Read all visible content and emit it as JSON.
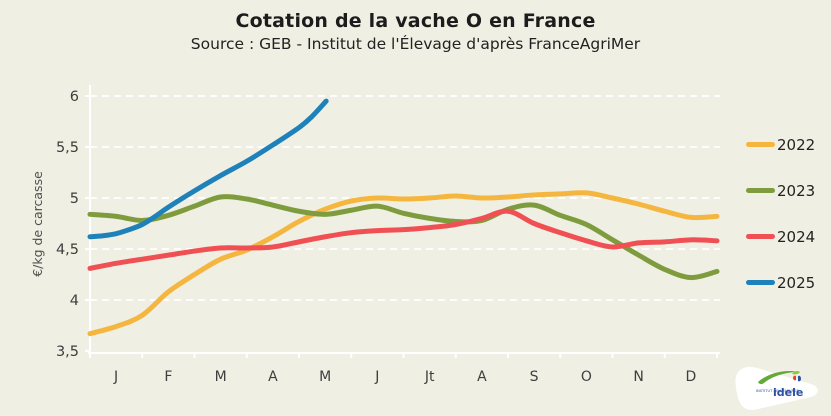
{
  "page": {
    "background": "#F0EFE3",
    "grid_color": "#FFFFFF",
    "text_color": "#1c1c1c",
    "tick_text_color": "#3e3e3e"
  },
  "chart_data": {
    "type": "line",
    "title": "Cotation de la vache O en France",
    "subtitle": "Source : GEB - Institut de l'Élevage d'après FranceAgriMer",
    "ylabel": "€/kg de carcasse",
    "ylim": [
      3.5,
      6.0
    ],
    "yticks": [
      {
        "value": 6,
        "label": "6"
      },
      {
        "value": 5.5,
        "label": "5,5"
      },
      {
        "value": 5,
        "label": "5"
      },
      {
        "value": 4.5,
        "label": "4,5"
      },
      {
        "value": 4,
        "label": "4"
      },
      {
        "value": 3.5,
        "label": "3,5"
      }
    ],
    "xtick_month_labels": [
      "J",
      "F",
      "M",
      "A",
      "M",
      "J",
      "Jt",
      "A",
      "S",
      "O",
      "N",
      "D"
    ],
    "x_unit": "month of year (weekly price series)",
    "grid": "horizontal dashed white",
    "legend_position": "right",
    "series": [
      {
        "name": "2022",
        "color": "#F5B63F",
        "x": [
          0,
          0.5,
          1,
          1.5,
          2,
          2.5,
          3,
          3.5,
          4,
          4.5,
          5,
          5.5,
          6,
          6.5,
          7,
          7.5,
          8,
          8.5,
          9,
          9.5,
          10,
          10.5,
          11,
          11.5,
          12
        ],
        "y": [
          3.67,
          3.74,
          3.85,
          4.08,
          4.25,
          4.4,
          4.49,
          4.62,
          4.77,
          4.89,
          4.97,
          5.0,
          4.99,
          5.0,
          5.02,
          5.0,
          5.01,
          5.03,
          5.04,
          5.05,
          5.0,
          4.94,
          4.87,
          4.81,
          4.82
        ]
      },
      {
        "name": "2023",
        "color": "#7E9C3D",
        "x": [
          0,
          0.5,
          1,
          1.5,
          2,
          2.5,
          3,
          3.5,
          4,
          4.5,
          5,
          5.5,
          6,
          6.5,
          7,
          7.5,
          8,
          8.5,
          9,
          9.5,
          10,
          10.5,
          11,
          11.5,
          12
        ],
        "y": [
          4.84,
          4.82,
          4.78,
          4.83,
          4.92,
          5.01,
          4.99,
          4.93,
          4.87,
          4.84,
          4.88,
          4.92,
          4.85,
          4.8,
          4.77,
          4.78,
          4.89,
          4.93,
          4.83,
          4.74,
          4.59,
          4.44,
          4.3,
          4.22,
          4.28
        ]
      },
      {
        "name": "2024",
        "color": "#F05054",
        "x": [
          0,
          0.5,
          1,
          1.5,
          2,
          2.5,
          3,
          3.5,
          4,
          4.5,
          5,
          5.5,
          6,
          6.5,
          7,
          7.5,
          8,
          8.5,
          9,
          9.5,
          10,
          10.5,
          11,
          11.5,
          12
        ],
        "y": [
          4.31,
          4.36,
          4.4,
          4.44,
          4.48,
          4.51,
          4.51,
          4.52,
          4.57,
          4.62,
          4.66,
          4.68,
          4.69,
          4.71,
          4.74,
          4.8,
          4.87,
          4.75,
          4.66,
          4.58,
          4.52,
          4.56,
          4.57,
          4.59,
          4.58
        ]
      },
      {
        "name": "2025",
        "color": "#1E81B9",
        "x": [
          0,
          0.25,
          0.5,
          0.75,
          1,
          1.25,
          1.5,
          2,
          2.5,
          3,
          3.5,
          4,
          4.25,
          4.52
        ],
        "y": [
          4.62,
          4.63,
          4.65,
          4.69,
          4.74,
          4.82,
          4.91,
          5.07,
          5.22,
          5.36,
          5.52,
          5.69,
          5.8,
          5.95
        ]
      }
    ]
  },
  "logo": {
    "small_text": "INSTITUT DE L'ÉLEVAGE",
    "brand": "idele"
  }
}
